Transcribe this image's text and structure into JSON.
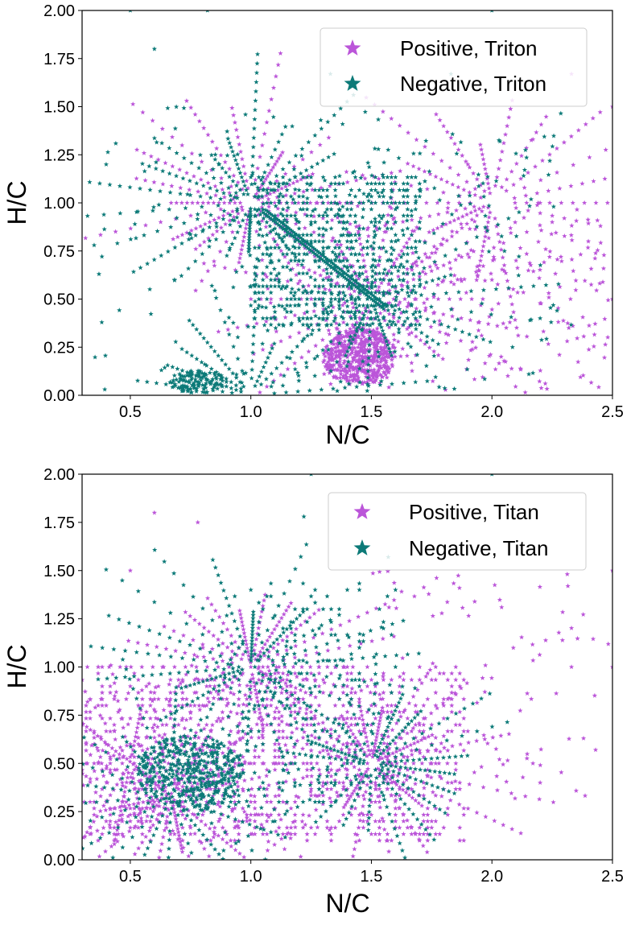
{
  "chart_data": [
    {
      "type": "scatter",
      "title": "",
      "xlabel": "N/C",
      "ylabel": "H/C",
      "xlim": [
        0.3,
        2.5
      ],
      "ylim": [
        0.0,
        2.0
      ],
      "xticks": [
        "0.5",
        "1.0",
        "1.5",
        "2.0",
        "2.5"
      ],
      "yticks": [
        "0.00",
        "0.25",
        "0.50",
        "0.75",
        "1.00",
        "1.25",
        "1.50",
        "1.75",
        "2.00"
      ],
      "legend_position": "top-right",
      "marker": "star",
      "series": [
        {
          "name": "Positive, Triton",
          "color": "#bb55d9",
          "patterns": {
            "rays_from": [
              [
                1.0,
                1.0
              ],
              [
                1.5,
                0.5
              ],
              [
                2.0,
                1.0
              ]
            ],
            "blobs": [
              {
                "cx": 1.45,
                "cy": 0.2,
                "rx": 0.15,
                "ry": 0.15,
                "n": 480
              }
            ],
            "scatter_region": {
              "x": [
                1.3,
                2.5
              ],
              "y": [
                0.0,
                1.0
              ],
              "n": 220
            },
            "outliers": [
              [
                2.5,
                1.5
              ],
              [
                2.5,
                0.5
              ],
              [
                2.33,
                1.67
              ],
              [
                2.4,
                0.8
              ],
              [
                2.17,
                1.33
              ],
              [
                2.2,
                1.0
              ],
              [
                2.1,
                0.7
              ],
              [
                2.25,
                0.9
              ],
              [
                1.9,
                1.2
              ],
              [
                2.0,
                0.6
              ]
            ]
          }
        },
        {
          "name": "Negative, Triton",
          "color": "#0c7a78",
          "patterns": {
            "rays_from": [
              [
                1.0,
                1.0
              ],
              [
                1.5,
                0.5
              ],
              [
                1.0,
                0.0
              ]
            ],
            "dense_diagonal": {
              "from": [
                1.05,
                0.95
              ],
              "to": [
                1.55,
                0.45
              ]
            },
            "fan_region": {
              "x": [
                1.0,
                1.7
              ],
              "y": [
                0.35,
                1.15
              ],
              "n": 700
            },
            "blobs": [
              {
                "cx": 0.78,
                "cy": 0.07,
                "rx": 0.12,
                "ry": 0.06,
                "n": 120
              }
            ],
            "scatter_region": {
              "x": [
                0.35,
                2.3
              ],
              "y": [
                0.0,
                1.5
              ],
              "n": 180
            },
            "outliers": [
              [
                0.5,
                2.0
              ],
              [
                0.82,
                2.0
              ],
              [
                0.6,
                1.8
              ],
              [
                1.33,
                1.67
              ],
              [
                2.0,
                2.0
              ],
              [
                1.83,
                1.67
              ],
              [
                1.29,
                1.43
              ],
              [
                0.4,
                1.2
              ],
              [
                0.35,
                0.78
              ],
              [
                0.37,
                0.63
              ],
              [
                2.27,
                0.44
              ],
              [
                2.2,
                0.4
              ]
            ]
          }
        }
      ]
    },
    {
      "type": "scatter",
      "title": "",
      "xlabel": "N/C",
      "ylabel": "H/C",
      "xlim": [
        0.3,
        2.5
      ],
      "ylim": [
        0.0,
        2.0
      ],
      "xticks": [
        "0.5",
        "1.0",
        "1.5",
        "2.0",
        "2.5"
      ],
      "yticks": [
        "0.00",
        "0.25",
        "0.50",
        "0.75",
        "1.00",
        "1.25",
        "1.50",
        "1.75",
        "2.00"
      ],
      "legend_position": "top-right",
      "marker": "star",
      "series": [
        {
          "name": "Positive, Titan",
          "color": "#bb55d9",
          "patterns": {
            "rays_from": [
              [
                1.0,
                1.0
              ],
              [
                0.67,
                0.33
              ],
              [
                1.5,
                0.5
              ],
              [
                0.5,
                0.5
              ]
            ],
            "fan_region": {
              "x": [
                0.3,
                1.9
              ],
              "y": [
                0.1,
                1.0
              ],
              "n": 900
            },
            "scatter_region": {
              "x": [
                1.5,
                2.5
              ],
              "y": [
                0.3,
                1.5
              ],
              "n": 90
            },
            "outliers": [
              [
                2.5,
                1.5
              ],
              [
                2.5,
                1.0
              ],
              [
                2.33,
                1.0
              ],
              [
                2.43,
                0.57
              ],
              [
                2.38,
                0.63
              ],
              [
                2.2,
                0.4
              ],
              [
                2.17,
                0.5
              ],
              [
                0.78,
                1.75
              ],
              [
                0.5,
                1.5
              ],
              [
                0.6,
                1.8
              ]
            ]
          }
        },
        {
          "name": "Negative, Titan",
          "color": "#0c7a78",
          "patterns": {
            "rays_from": [
              [
                1.0,
                1.0
              ],
              [
                0.67,
                0.33
              ],
              [
                1.5,
                0.5
              ]
            ],
            "blobs": [
              {
                "cx": 0.75,
                "cy": 0.45,
                "rx": 0.22,
                "ry": 0.2,
                "n": 380
              }
            ],
            "fan_region": {
              "x": [
                0.9,
                1.6
              ],
              "y": [
                0.3,
                1.45
              ],
              "n": 160
            },
            "outliers": [
              [
                1.22,
                1.78
              ],
              [
                1.25,
                2.0
              ],
              [
                2.0,
                2.0
              ],
              [
                1.57,
                1.57
              ],
              [
                1.4,
                1.4
              ],
              [
                1.6,
                1.4
              ],
              [
                1.1,
                0.2
              ]
            ]
          }
        }
      ]
    }
  ]
}
